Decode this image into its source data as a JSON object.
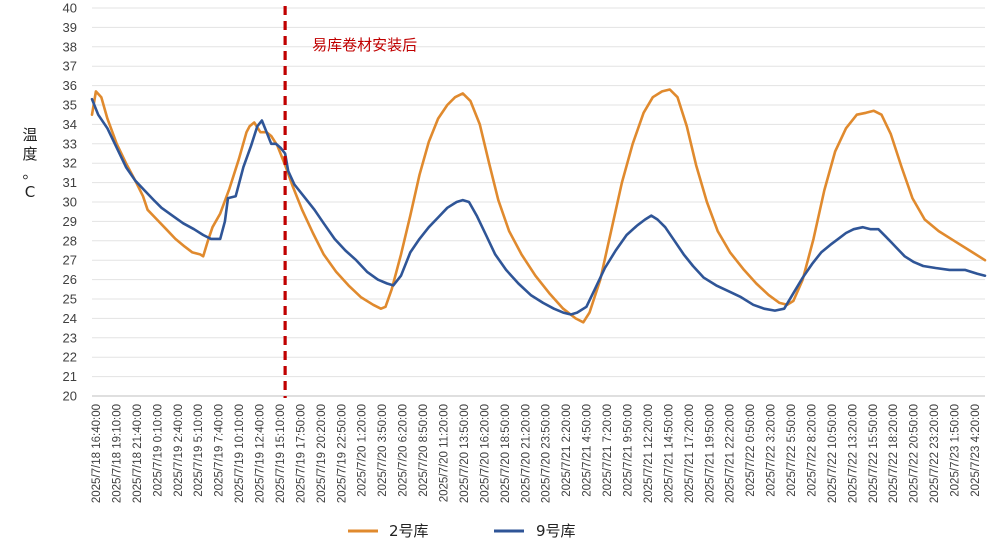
{
  "chart_data": {
    "type": "line",
    "title": "",
    "xlabel": "",
    "ylabel": "温度。C",
    "ylim": [
      20,
      40
    ],
    "ytick_step": 1,
    "grid": "horizontal",
    "legend_position": "bottom",
    "x_ticks": [
      "2025/7/18 16:40:00",
      "2025/7/18 19:10:00",
      "2025/7/18 21:40:00",
      "2025/7/19 0:10:00",
      "2025/7/19 2:40:00",
      "2025/7/19 5:10:00",
      "2025/7/19 7:40:00",
      "2025/7/19 10:10:00",
      "2025/7/19 12:40:00",
      "2025/7/19 15:10:00",
      "2025/7/19 17:50:00",
      "2025/7/19 20:20:00",
      "2025/7/19 22:50:00",
      "2025/7/20 1:20:00",
      "2025/7/20 3:50:00",
      "2025/7/20 6:20:00",
      "2025/7/20 8:50:00",
      "2025/7/20 11:20:00",
      "2025/7/20 13:50:00",
      "2025/7/20 16:20:00",
      "2025/7/20 18:50:00",
      "2025/7/20 21:20:00",
      "2025/7/20 23:50:00",
      "2025/7/21 2:20:00",
      "2025/7/21 4:50:00",
      "2025/7/21 7:20:00",
      "2025/7/21 9:50:00",
      "2025/7/21 12:20:00",
      "2025/7/21 14:50:00",
      "2025/7/21 17:20:00",
      "2025/7/21 19:50:00",
      "2025/7/21 22:20:00",
      "2025/7/22 0:50:00",
      "2025/7/22 3:20:00",
      "2025/7/22 5:50:00",
      "2025/7/22 8:20:00",
      "2025/7/22 10:50:00",
      "2025/7/22 13:20:00",
      "2025/7/22 15:50:00",
      "2025/7/22 18:20:00",
      "2025/7/22 20:50:00",
      "2025/7/22 23:20:00",
      "2025/7/23 1:50:00",
      "2025/7/23 4:20:00"
    ],
    "series": [
      {
        "name": "2号库",
        "color": "#E08A2E",
        "points": [
          [
            0,
            34.5
          ],
          [
            0.25,
            35.7
          ],
          [
            0.6,
            35.4
          ],
          [
            1,
            34.3
          ],
          [
            1.6,
            33.0
          ],
          [
            2.2,
            32.0
          ],
          [
            2.8,
            31.1
          ],
          [
            3.3,
            30.3
          ],
          [
            3.6,
            29.6
          ],
          [
            4.2,
            29.1
          ],
          [
            4.8,
            28.6
          ],
          [
            5.4,
            28.1
          ],
          [
            6,
            27.7
          ],
          [
            6.5,
            27.4
          ],
          [
            7,
            27.3
          ],
          [
            7.2,
            27.2
          ],
          [
            7.5,
            28.0
          ],
          [
            7.8,
            28.7
          ],
          [
            8.3,
            29.4
          ],
          [
            8.9,
            30.7
          ],
          [
            9.5,
            32.2
          ],
          [
            10.0,
            33.6
          ],
          [
            10.2,
            33.9
          ],
          [
            10.5,
            34.1
          ],
          [
            10.9,
            33.6
          ],
          [
            11.3,
            33.6
          ],
          [
            11.6,
            33.4
          ],
          [
            12.0,
            32.9
          ],
          [
            12.5,
            31.9
          ],
          [
            13.0,
            30.8
          ],
          [
            13.6,
            29.6
          ],
          [
            14.3,
            28.4
          ],
          [
            15,
            27.3
          ],
          [
            15.8,
            26.4
          ],
          [
            16.6,
            25.7
          ],
          [
            17.4,
            25.1
          ],
          [
            18.2,
            24.7
          ],
          [
            18.7,
            24.5
          ],
          [
            19.0,
            24.6
          ],
          [
            19.4,
            25.5
          ],
          [
            20,
            27.3
          ],
          [
            20.6,
            29.3
          ],
          [
            21.2,
            31.4
          ],
          [
            21.8,
            33.1
          ],
          [
            22.4,
            34.3
          ],
          [
            23.0,
            35.0
          ],
          [
            23.5,
            35.4
          ],
          [
            24.0,
            35.6
          ],
          [
            24.5,
            35.2
          ],
          [
            25.1,
            34.0
          ],
          [
            25.7,
            32.0
          ],
          [
            26.3,
            30.1
          ],
          [
            27.0,
            28.5
          ],
          [
            27.8,
            27.3
          ],
          [
            28.7,
            26.2
          ],
          [
            29.6,
            25.3
          ],
          [
            30.5,
            24.5
          ],
          [
            31.3,
            24.0
          ],
          [
            31.8,
            23.8
          ],
          [
            32.2,
            24.3
          ],
          [
            32.9,
            26.0
          ],
          [
            33.6,
            28.5
          ],
          [
            34.3,
            31.0
          ],
          [
            35.0,
            33.0
          ],
          [
            35.7,
            34.6
          ],
          [
            36.3,
            35.4
          ],
          [
            36.9,
            35.7
          ],
          [
            37.4,
            35.8
          ],
          [
            37.9,
            35.4
          ],
          [
            38.5,
            33.9
          ],
          [
            39.1,
            31.9
          ],
          [
            39.8,
            30.0
          ],
          [
            40.5,
            28.5
          ],
          [
            41.3,
            27.4
          ],
          [
            42.2,
            26.5
          ],
          [
            43.0,
            25.8
          ],
          [
            43.8,
            25.2
          ],
          [
            44.5,
            24.8
          ],
          [
            45.0,
            24.7
          ],
          [
            45.4,
            24.9
          ],
          [
            46.0,
            26.0
          ],
          [
            46.7,
            28.1
          ],
          [
            47.4,
            30.6
          ],
          [
            48.1,
            32.6
          ],
          [
            48.8,
            33.8
          ],
          [
            49.5,
            34.5
          ],
          [
            50.1,
            34.6
          ],
          [
            50.6,
            34.7
          ],
          [
            51.1,
            34.5
          ],
          [
            51.7,
            33.5
          ],
          [
            52.4,
            31.8
          ],
          [
            53.1,
            30.2
          ],
          [
            53.9,
            29.1
          ],
          [
            54.8,
            28.5
          ],
          [
            55.8,
            28.0
          ],
          [
            56.8,
            27.5
          ],
          [
            57.8,
            27.0
          ]
        ]
      },
      {
        "name": "9号库",
        "color": "#2F5597",
        "points": [
          [
            0,
            35.3
          ],
          [
            0.4,
            34.5
          ],
          [
            1,
            33.8
          ],
          [
            1.6,
            32.8
          ],
          [
            2.2,
            31.8
          ],
          [
            2.8,
            31.1
          ],
          [
            3.4,
            30.6
          ],
          [
            4.0,
            30.1
          ],
          [
            4.5,
            29.7
          ],
          [
            5.2,
            29.3
          ],
          [
            5.9,
            28.9
          ],
          [
            6.6,
            28.6
          ],
          [
            7.2,
            28.3
          ],
          [
            7.7,
            28.1
          ],
          [
            8.0,
            28.1
          ],
          [
            8.3,
            28.1
          ],
          [
            8.6,
            29.0
          ],
          [
            8.8,
            30.2
          ],
          [
            9.3,
            30.3
          ],
          [
            9.8,
            31.8
          ],
          [
            10.3,
            32.9
          ],
          [
            10.7,
            33.9
          ],
          [
            11.0,
            34.2
          ],
          [
            11.3,
            33.6
          ],
          [
            11.6,
            33.0
          ],
          [
            11.9,
            33.0
          ],
          [
            12.2,
            32.8
          ],
          [
            12.5,
            32.5
          ],
          [
            12.7,
            31.6
          ],
          [
            13.1,
            30.9
          ],
          [
            13.7,
            30.3
          ],
          [
            14.4,
            29.6
          ],
          [
            15.0,
            28.9
          ],
          [
            15.7,
            28.1
          ],
          [
            16.4,
            27.5
          ],
          [
            17.1,
            27.0
          ],
          [
            17.8,
            26.4
          ],
          [
            18.5,
            26.0
          ],
          [
            19.1,
            25.8
          ],
          [
            19.5,
            25.7
          ],
          [
            20.0,
            26.2
          ],
          [
            20.6,
            27.4
          ],
          [
            21.2,
            28.1
          ],
          [
            21.8,
            28.7
          ],
          [
            22.4,
            29.2
          ],
          [
            23.0,
            29.7
          ],
          [
            23.6,
            30.0
          ],
          [
            24.0,
            30.1
          ],
          [
            24.4,
            30.0
          ],
          [
            24.9,
            29.3
          ],
          [
            25.5,
            28.3
          ],
          [
            26.1,
            27.3
          ],
          [
            26.8,
            26.5
          ],
          [
            27.6,
            25.8
          ],
          [
            28.4,
            25.2
          ],
          [
            29.2,
            24.8
          ],
          [
            29.9,
            24.5
          ],
          [
            30.5,
            24.3
          ],
          [
            31.0,
            24.2
          ],
          [
            31.4,
            24.3
          ],
          [
            32.0,
            24.6
          ],
          [
            32.6,
            25.6
          ],
          [
            33.2,
            26.6
          ],
          [
            33.9,
            27.5
          ],
          [
            34.6,
            28.3
          ],
          [
            35.3,
            28.8
          ],
          [
            35.8,
            29.1
          ],
          [
            36.2,
            29.3
          ],
          [
            36.6,
            29.1
          ],
          [
            37.1,
            28.7
          ],
          [
            37.7,
            28.0
          ],
          [
            38.3,
            27.3
          ],
          [
            38.9,
            26.7
          ],
          [
            39.6,
            26.1
          ],
          [
            40.4,
            25.7
          ],
          [
            41.2,
            25.4
          ],
          [
            42.0,
            25.1
          ],
          [
            42.8,
            24.7
          ],
          [
            43.5,
            24.5
          ],
          [
            44.2,
            24.4
          ],
          [
            44.8,
            24.5
          ],
          [
            45.4,
            25.3
          ],
          [
            46.0,
            26.1
          ],
          [
            46.6,
            26.8
          ],
          [
            47.2,
            27.4
          ],
          [
            47.8,
            27.8
          ],
          [
            48.3,
            28.1
          ],
          [
            48.8,
            28.4
          ],
          [
            49.3,
            28.6
          ],
          [
            49.9,
            28.7
          ],
          [
            50.4,
            28.6
          ],
          [
            50.9,
            28.6
          ],
          [
            51.4,
            28.2
          ],
          [
            52.0,
            27.7
          ],
          [
            52.6,
            27.2
          ],
          [
            53.2,
            26.9
          ],
          [
            53.8,
            26.7
          ],
          [
            54.6,
            26.6
          ],
          [
            55.5,
            26.5
          ],
          [
            56.5,
            26.5
          ],
          [
            57.3,
            26.3
          ],
          [
            57.8,
            26.2
          ]
        ]
      }
    ],
    "x_span": [
      0,
      57.8
    ],
    "annotations": [
      {
        "text": "易库卷材安装后",
        "color": "#C00000",
        "style": "dashed vertical line",
        "x": 12.5
      }
    ]
  }
}
